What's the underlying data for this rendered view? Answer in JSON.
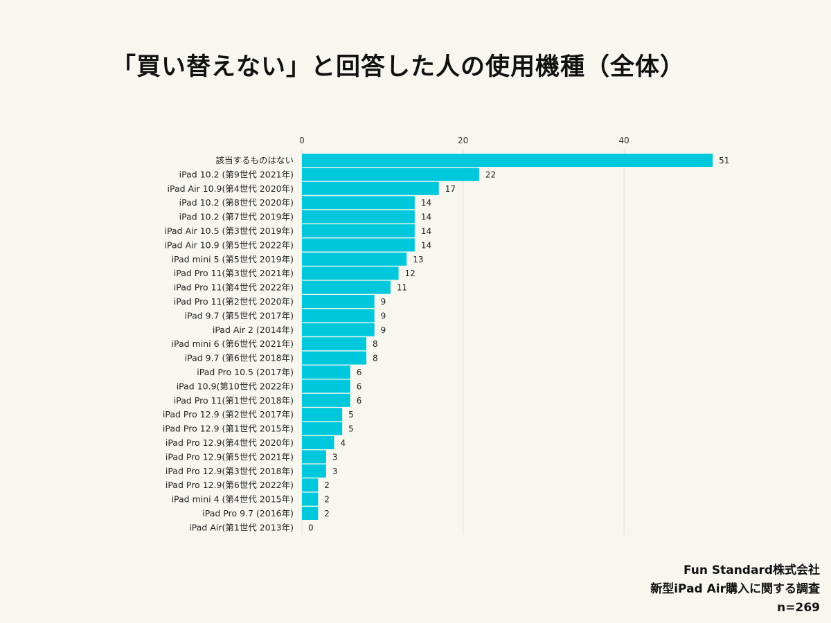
{
  "chart_data": {
    "type": "bar",
    "orientation": "horizontal",
    "title": "「買い替えない」と回答した人の使用機種（全体）",
    "categories": [
      "該当するものはない",
      "iPad 10.2 (第9世代 2021年)",
      "iPad Air 10.9(第4世代 2020年)",
      "iPad 10.2 (第8世代 2020年)",
      "iPad 10.2 (第7世代 2019年)",
      "iPad Air 10.5 (第3世代 2019年)",
      "iPad Air 10.9 (第5世代 2022年)",
      "iPad mini 5 (第5世代 2019年)",
      "iPad Pro 11(第3世代 2021年)",
      "iPad Pro 11(第4世代 2022年)",
      "iPad Pro 11(第2世代 2020年)",
      "iPad 9.7 (第5世代 2017年)",
      "iPad Air 2 (2014年)",
      "iPad mini 6 (第6世代 2021年)",
      "iPad 9.7 (第6世代 2018年)",
      "iPad Pro 10.5 (2017年)",
      "iPad 10.9(第10世代 2022年)",
      "iPad Pro 11(第1世代 2018年)",
      "iPad Pro 12.9 (第2世代 2017年)",
      "iPad Pro 12.9 (第1世代 2015年)",
      "iPad Pro 12.9(第4世代 2020年)",
      "iPad Pro 12.9(第5世代 2021年)",
      "iPad Pro 12.9(第3世代 2018年)",
      "iPad Pro 12.9(第6世代 2022年)",
      "iPad mini 4 (第4世代 2015年)",
      "iPad Pro 9.7 (2016年)",
      "iPad Air(第1世代 2013年)"
    ],
    "values": [
      51,
      22,
      17,
      14,
      14,
      14,
      14,
      13,
      12,
      11,
      9,
      9,
      9,
      8,
      8,
      6,
      6,
      6,
      5,
      5,
      4,
      3,
      3,
      2,
      2,
      2,
      0
    ],
    "xlim": [
      0,
      51
    ],
    "xticks": [
      0,
      20,
      40
    ],
    "grid": true,
    "bar_color": "#00c8dc"
  },
  "footer": {
    "company": "Fun Standard株式会社",
    "survey": "新型iPad Air購入に関する調査",
    "n": "n=269"
  }
}
